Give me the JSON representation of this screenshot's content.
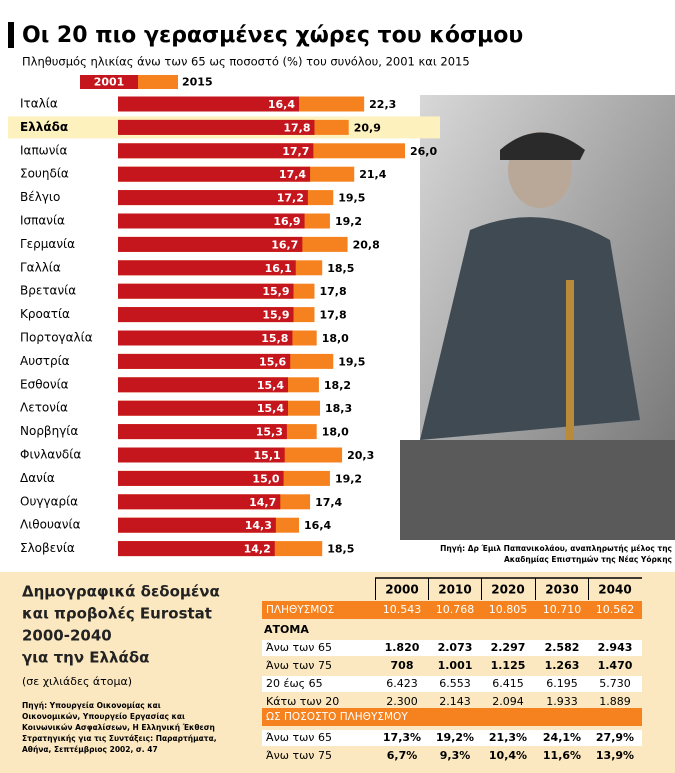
{
  "chart_data": {
    "type": "bar",
    "title": "Οι 20 πιο γερασμένες χώρες του κόσμου",
    "subtitle": "Πληθυσμός ηλικίας άνω των 65 ως ποσοστό (%) του συνόλου, 2001 και 2015",
    "categories": [
      "Ιταλία",
      "Ελλάδα",
      "Ιαπωνία",
      "Σουηδία",
      "Βέλγιο",
      "Ισπανία",
      "Γερμανία",
      "Γαλλία",
      "Βρετανία",
      "Κροατία",
      "Πορτογαλία",
      "Αυστρία",
      "Εσθονία",
      "Λετονία",
      "Νορβηγία",
      "Φινλανδία",
      "Δανία",
      "Ουγγαρία",
      "Λιθουανία",
      "Σλοβενία"
    ],
    "highlight_category_index": 1,
    "series": [
      {
        "name": "2001",
        "color": "#c4161c",
        "values": [
          16.4,
          17.8,
          17.7,
          17.4,
          17.2,
          16.9,
          16.7,
          16.1,
          15.9,
          15.9,
          15.8,
          15.6,
          15.4,
          15.4,
          15.3,
          15.1,
          15.0,
          14.7,
          14.3,
          14.2
        ],
        "value_labels": [
          "16,4",
          "17,8",
          "17,7",
          "17,4",
          "17,2",
          "16,9",
          "16,7",
          "16,1",
          "15,9",
          "15,9",
          "15,8",
          "15,6",
          "15,4",
          "15,4",
          "15,3",
          "15,1",
          "15,0",
          "14,7",
          "14,3",
          "14,2"
        ]
      },
      {
        "name": "2015",
        "color": "#f5821f",
        "values": [
          22.3,
          20.9,
          26.0,
          21.4,
          19.5,
          19.2,
          20.8,
          18.5,
          17.8,
          17.8,
          18.0,
          19.5,
          18.2,
          18.3,
          18.0,
          20.3,
          19.2,
          17.4,
          16.4,
          18.5
        ],
        "value_labels": [
          "22,3",
          "20,9",
          "26,0",
          "21,4",
          "19,5",
          "19,2",
          "20,8",
          "18,5",
          "17,8",
          "17,8",
          "18,0",
          "19,5",
          "18,2",
          "18,3",
          "18,0",
          "20,3",
          "19,2",
          "17,4",
          "16,4",
          "18,5"
        ]
      }
    ],
    "photo_credit": [
      "Πηγή: Δρ Έμιλ Παπανικολάου, αναπληρωτής μέλος της",
      "Ακαδημίας Επιστημών της Νέας Υόρκης"
    ]
  },
  "table": {
    "title": [
      "Δημογραφικά δεδομένα",
      "και προβολές Eurostat",
      "2000-2040",
      "για την Ελλάδα"
    ],
    "unit": "(σε χιλιάδες άτομα)",
    "source": [
      "Πηγή: Υπουργεία Οικονομίας και",
      "Οικονομικών, Υπουργείο Εργασίας και",
      "Κοινωνικών Ασφαλίσεων, Η Ελληνική Έκθεση",
      "Στρατηγικής για τις Συντάξεις: Παραρτήματα,",
      "Αθήνα, Σεπτέμβριος 2002, σ. 47"
    ],
    "columns": [
      "2000",
      "2010",
      "2020",
      "2030",
      "2040"
    ],
    "population": {
      "label": "ΠΛΗΘΥΣΜΟΣ",
      "values": [
        "10.543",
        "10.768",
        "10.805",
        "10.710",
        "10.562"
      ]
    },
    "persons_heading": "ΑΤΟΜΑ",
    "persons": [
      {
        "label": "Άνω των 65",
        "values": [
          "1.820",
          "2.073",
          "2.297",
          "2.582",
          "2.943"
        ]
      },
      {
        "label": "Άνω των 75",
        "values": [
          "708",
          "1.001",
          "1.125",
          "1.263",
          "1.470"
        ]
      },
      {
        "label": "20 έως 65",
        "values": [
          "6.423",
          "6.553",
          "6.415",
          "6.195",
          "5.730"
        ]
      },
      {
        "label": "Κάτω των 20",
        "values": [
          "2.300",
          "2.143",
          "2.094",
          "1.933",
          "1.889"
        ]
      }
    ],
    "share_heading": "ΩΣ ΠΟΣΟΣΤΟ ΠΛΗΘΥΣΜΟΥ",
    "shares": [
      {
        "label": "Άνω των 65",
        "values": [
          "17,3%",
          "19,2%",
          "21,3%",
          "24,1%",
          "27,9%"
        ]
      },
      {
        "label": "Άνω των 75",
        "values": [
          "6,7%",
          "9,3%",
          "10,4%",
          "11,6%",
          "13,9%"
        ]
      }
    ]
  }
}
